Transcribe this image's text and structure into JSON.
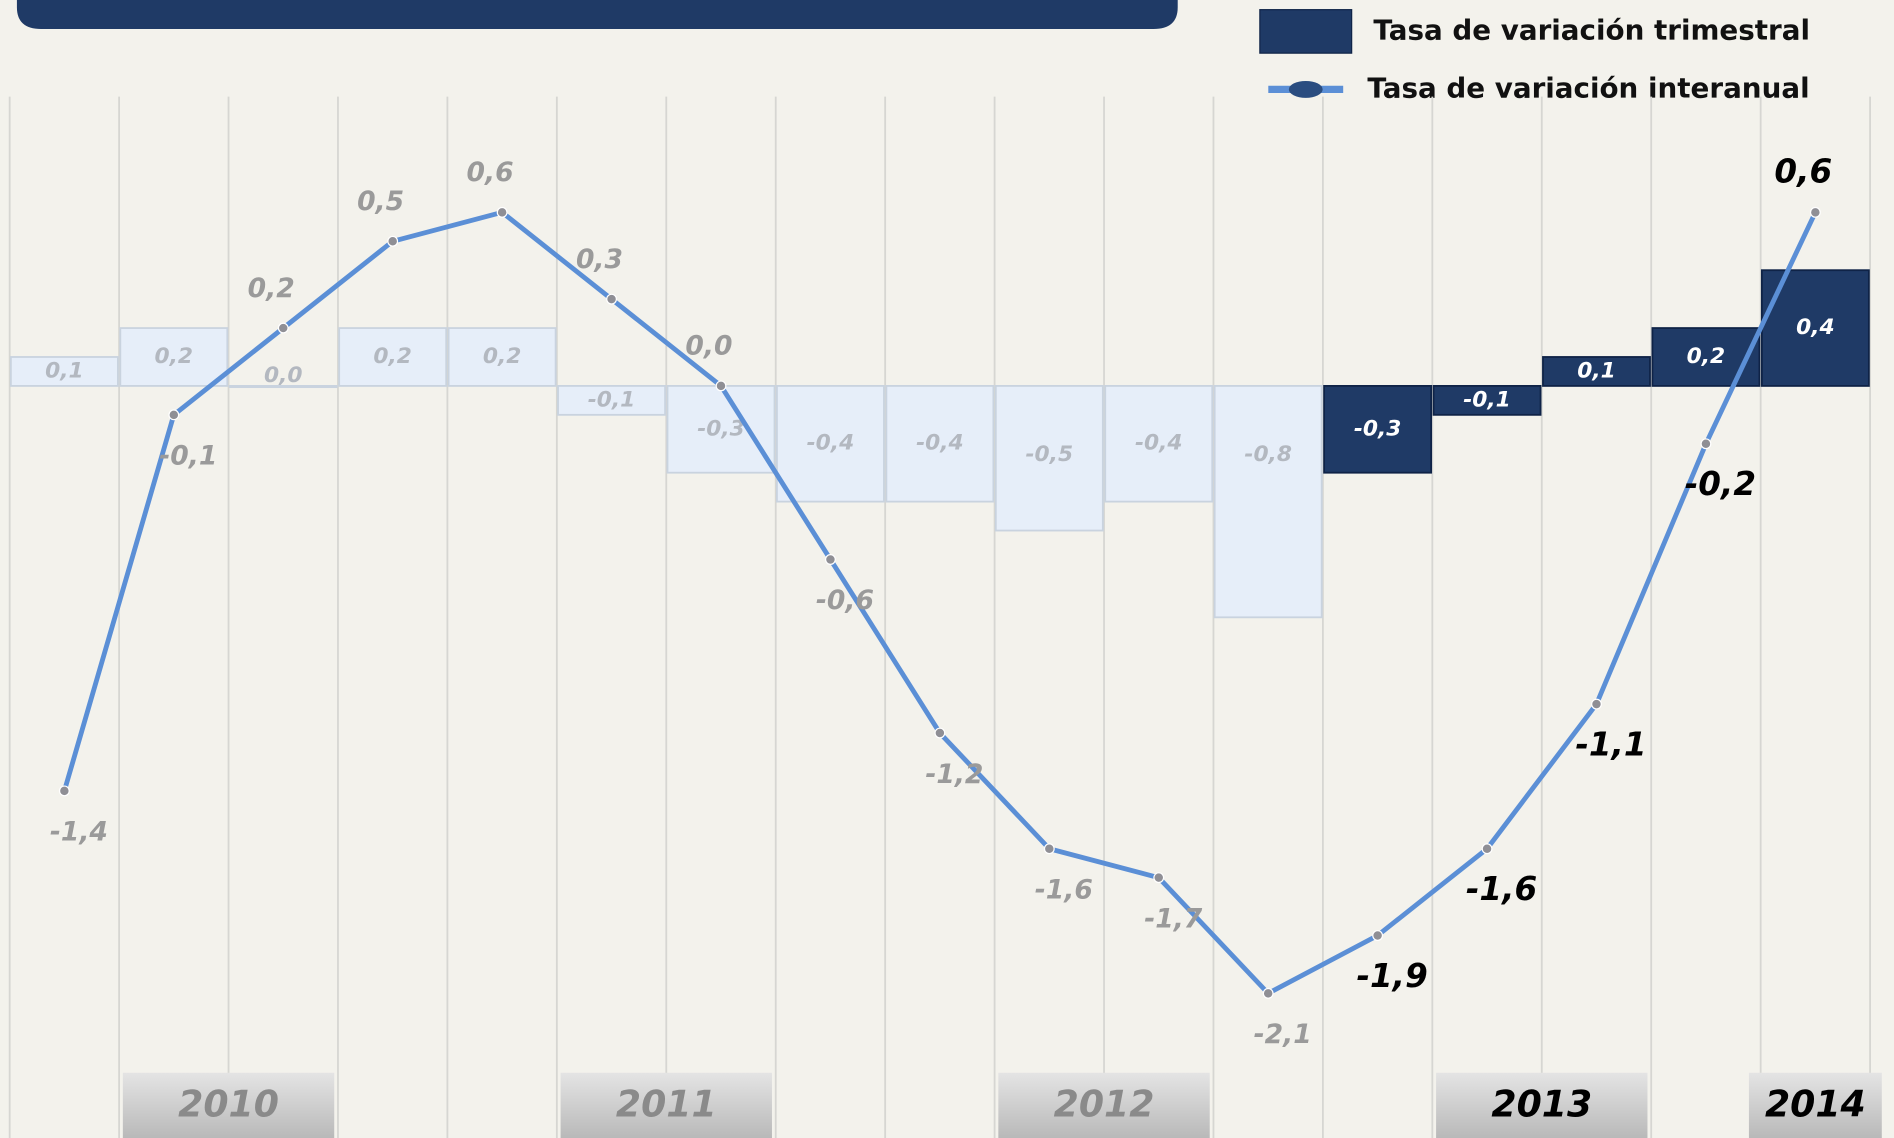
{
  "chart_data": {
    "type": "bar-line",
    "categories": [
      null,
      null,
      null,
      null,
      null,
      null,
      null,
      null,
      null,
      null,
      null,
      null,
      null,
      null,
      null,
      null,
      null
    ],
    "year_labels": [
      "2010",
      "2011",
      "2012",
      "2013",
      "2014"
    ],
    "ylim": [
      -2.6,
      1.0
    ],
    "series": [
      {
        "name": "Tasa de variación trimestral",
        "type": "bar",
        "colors": [
          "#e6eef9",
          "#e6eef9",
          "#e6eef9",
          "#e6eef9",
          "#e6eef9",
          "#e6eef9",
          "#e6eef9",
          "#e6eef9",
          "#e6eef9",
          "#e6eef9",
          "#e6eef9",
          "#e6eef9",
          "#1f3a66",
          "#1f3a66",
          "#1f3a66",
          "#1f3a66",
          "#1f3a66"
        ],
        "values": [
          0.1,
          0.2,
          0.0,
          0.2,
          0.2,
          -0.1,
          -0.3,
          -0.4,
          -0.4,
          -0.5,
          -0.4,
          -0.8,
          -0.3,
          -0.1,
          0.1,
          0.2,
          0.4
        ],
        "value_labels": [
          "0,1",
          "0,2",
          "0,0",
          "0,2",
          "0,2",
          "-0,1",
          "-0,3",
          "-0,4",
          "-0,4",
          "-0,5",
          "-0,4",
          "-0,8",
          "-0,3",
          "-0,1",
          "0,1",
          "0,2",
          "0,4"
        ]
      },
      {
        "name": "Tasa de variación interanual",
        "type": "line",
        "color": "#5b8fd6",
        "values": [
          -1.4,
          -0.1,
          0.2,
          0.5,
          0.6,
          0.3,
          0.0,
          -0.6,
          -1.2,
          -1.6,
          -1.7,
          -2.1,
          -1.9,
          -1.6,
          -1.1,
          -0.2,
          0.6
        ],
        "value_labels": [
          "-1,4",
          "-0,1",
          "0,2",
          "0,5",
          "0,6",
          "0,3",
          "0,0",
          "-0,6",
          "-1,2",
          "-1,6",
          "-1,7",
          "-2,1",
          "-1,9",
          "-1,6",
          "-1,1",
          "-0,2",
          "0,6"
        ]
      }
    ]
  }
}
